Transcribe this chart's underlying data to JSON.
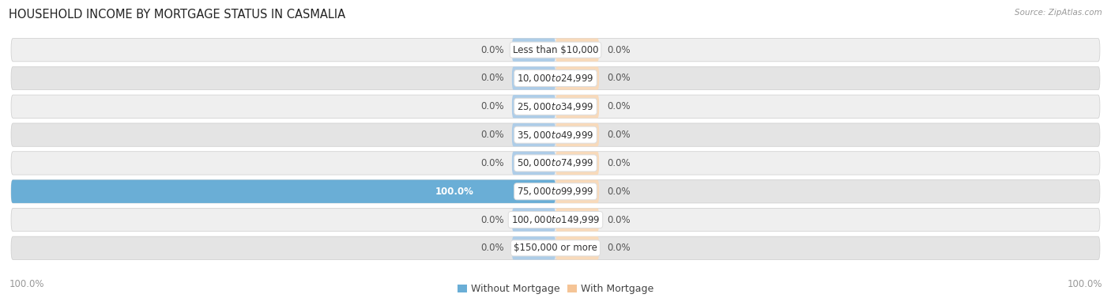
{
  "title": "HOUSEHOLD INCOME BY MORTGAGE STATUS IN CASMALIA",
  "source": "Source: ZipAtlas.com",
  "categories": [
    "Less than $10,000",
    "$10,000 to $24,999",
    "$25,000 to $34,999",
    "$35,000 to $49,999",
    "$50,000 to $74,999",
    "$75,000 to $99,999",
    "$100,000 to $149,999",
    "$150,000 or more"
  ],
  "without_mortgage": [
    0.0,
    0.0,
    0.0,
    0.0,
    0.0,
    100.0,
    0.0,
    0.0
  ],
  "with_mortgage": [
    0.0,
    0.0,
    0.0,
    0.0,
    0.0,
    0.0,
    0.0,
    0.0
  ],
  "color_without": "#6aaed6",
  "color_without_light": "#aecde8",
  "color_with": "#f5c496",
  "color_with_light": "#f8dabb",
  "row_bg_odd": "#f0f0f0",
  "row_bg_even": "#e6e6e6",
  "label_fontsize": 8.5,
  "title_fontsize": 10.5,
  "axis_label_100_left": "100.0%",
  "axis_label_100_right": "100.0%",
  "legend_label_without": "Without Mortgage",
  "legend_label_with": "With Mortgage",
  "min_bar_display": 8
}
